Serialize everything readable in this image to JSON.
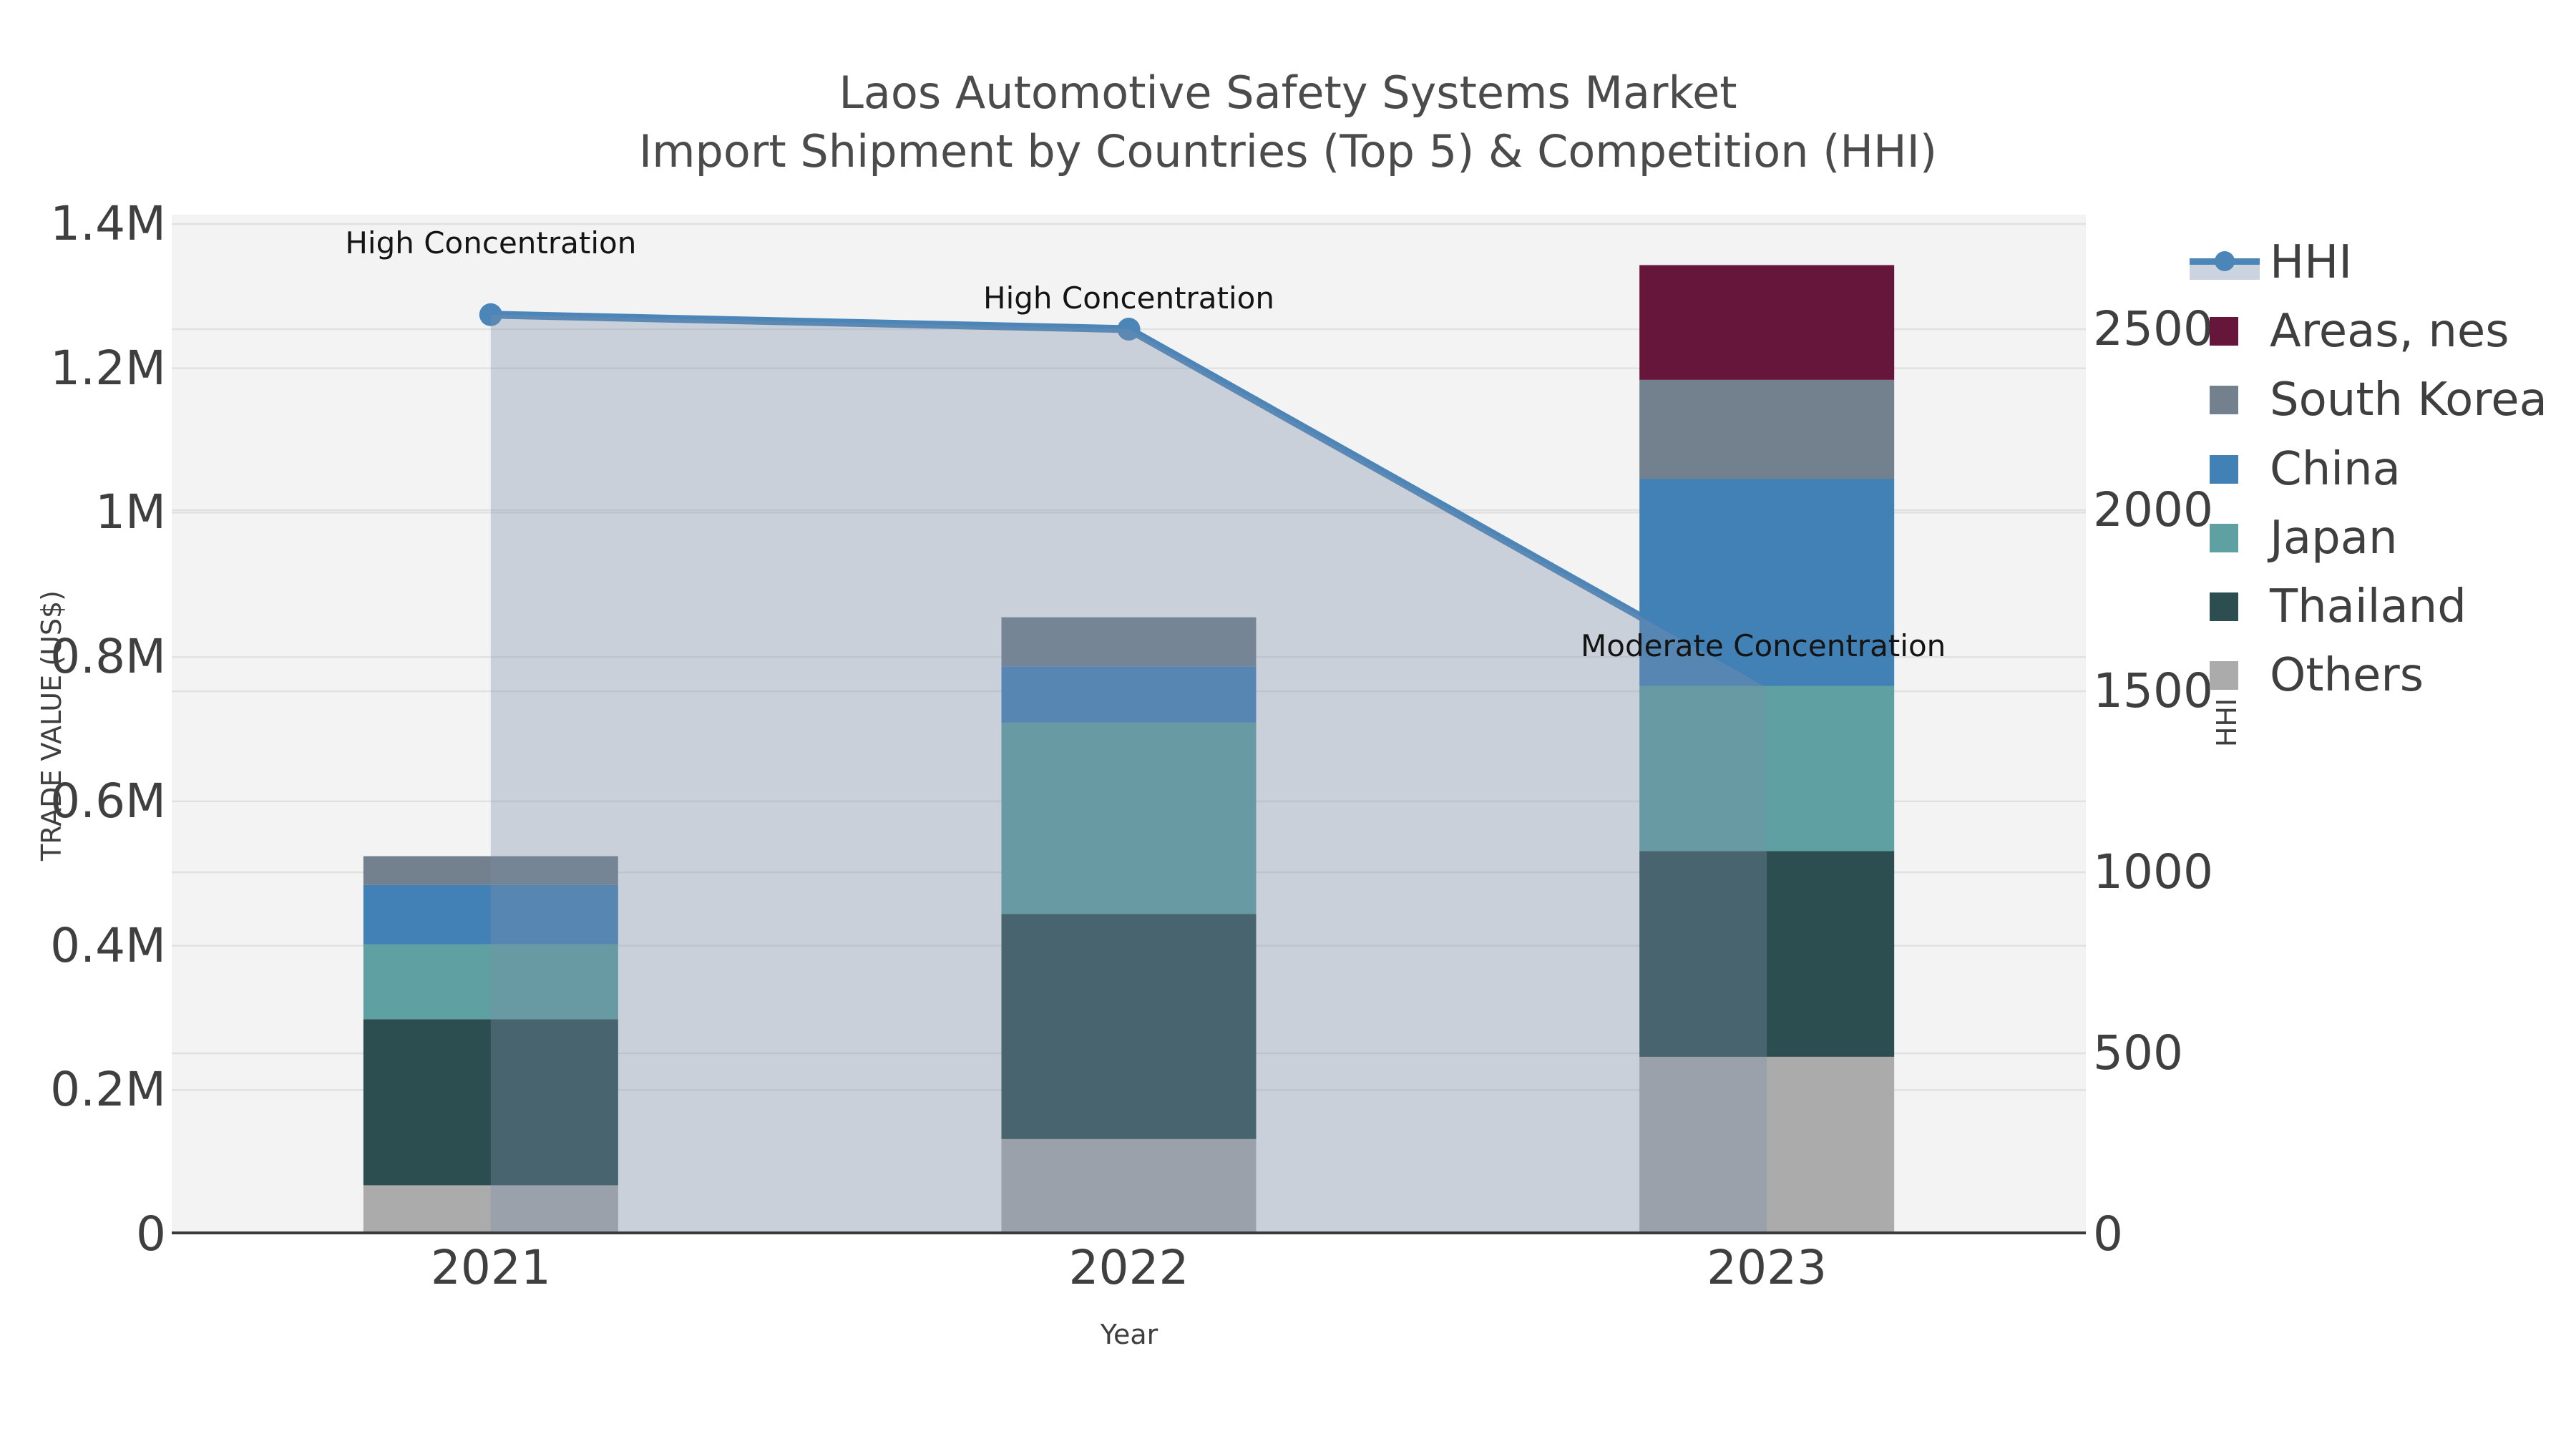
{
  "title": {
    "line1": "Laos Automotive Safety Systems Market",
    "line2": "Import Shipment by Countries (Top 5) & Competition (HHI)"
  },
  "axes": {
    "left": {
      "title": "TRADE VALUE (US$)",
      "ticks": [
        {
          "value": 0,
          "label": "0"
        },
        {
          "value": 200000,
          "label": "0.2M"
        },
        {
          "value": 400000,
          "label": "0.4M"
        },
        {
          "value": 600000,
          "label": "0.6M"
        },
        {
          "value": 800000,
          "label": "0.8M"
        },
        {
          "value": 1000000,
          "label": "1M"
        },
        {
          "value": 1200000,
          "label": "1.2M"
        },
        {
          "value": 1400000,
          "label": "1.4M"
        }
      ]
    },
    "right": {
      "title": "HHI",
      "ticks": [
        {
          "value": 0,
          "label": "0"
        },
        {
          "value": 500,
          "label": "500"
        },
        {
          "value": 1000,
          "label": "1000"
        },
        {
          "value": 1500,
          "label": "1500"
        },
        {
          "value": 2000,
          "label": "2000"
        },
        {
          "value": 2500,
          "label": "2500"
        }
      ]
    },
    "x": {
      "title": "Year",
      "categories": [
        "2021",
        "2022",
        "2023"
      ]
    }
  },
  "legend": {
    "items": [
      {
        "label": "HHI",
        "type": "line",
        "color": "#4C86B8",
        "band_color": "#CBD3DF"
      },
      {
        "label": "Areas, nes",
        "type": "patch",
        "color": "#66163A"
      },
      {
        "label": "South Korea",
        "type": "patch",
        "color": "#73808D"
      },
      {
        "label": "China",
        "type": "patch",
        "color": "#4281B5"
      },
      {
        "label": "Japan",
        "type": "patch",
        "color": "#5FA0A2"
      },
      {
        "label": "Thailand",
        "type": "patch",
        "color": "#2C4E50"
      },
      {
        "label": "Others",
        "type": "patch",
        "color": "#ABABAB"
      }
    ]
  },
  "style_colors": {
    "plot_background": "#F3F3F3",
    "gridline": "#E1E1E1",
    "spine": "#3A3A3A",
    "hhi_line": "#4C86B8",
    "hhi_band": "rgba(122,142,168,0.35)"
  },
  "chart_data": {
    "type": "bar",
    "subtype": "stacked-bars-with-line",
    "title": "Laos Automotive Safety Systems Market",
    "subtitle": "Import Shipment by Countries (Top 5) & Competition (HHI)",
    "xlabel": "Year",
    "ylabel_left": "TRADE VALUE (US$)",
    "ylabel_right": "HHI",
    "left_ylim": [
      0,
      1400000
    ],
    "right_ylim": [
      0,
      2820
    ],
    "grid": true,
    "legend_position": "right",
    "categories": [
      "2021",
      "2022",
      "2023"
    ],
    "series": [
      {
        "name": "Others",
        "color": "#ABABAB",
        "values": [
          68000,
          132000,
          246000
        ]
      },
      {
        "name": "Thailand",
        "color": "#2C4E50",
        "values": [
          230000,
          312000,
          285000
        ]
      },
      {
        "name": "Japan",
        "color": "#5FA0A2",
        "values": [
          104000,
          265000,
          229000
        ]
      },
      {
        "name": "China",
        "color": "#4281B5",
        "values": [
          82000,
          78000,
          287000
        ]
      },
      {
        "name": "South Korea",
        "color": "#73808D",
        "values": [
          40000,
          68000,
          137000
        ]
      },
      {
        "name": "Areas, nes",
        "color": "#66163A",
        "values": [
          0,
          0,
          159000
        ]
      }
    ],
    "totals": [
      524000,
      855000,
      1343000
    ],
    "line_series": {
      "name": "HHI",
      "color": "#4C86B8",
      "band_color": "rgba(122,142,168,0.35)",
      "values": [
        2540,
        2500,
        1510
      ]
    },
    "annotations": [
      {
        "text": "High Concentration",
        "category": "2021",
        "hhi": 2540
      },
      {
        "text": "High Concentration",
        "category": "2022",
        "hhi": 2500
      },
      {
        "text": "Moderate Concentration",
        "category": "2023",
        "hhi": 1510
      }
    ]
  }
}
